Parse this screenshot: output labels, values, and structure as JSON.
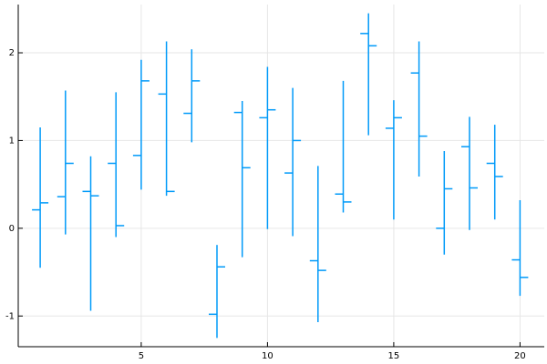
{
  "chart_data": {
    "type": "ohlc",
    "color": "#009af9",
    "grid": true,
    "x": [
      1,
      2,
      3,
      4,
      5,
      6,
      7,
      8,
      9,
      10,
      11,
      12,
      13,
      14,
      15,
      16,
      17,
      18,
      19,
      20
    ],
    "open": [
      0.21,
      0.36,
      0.42,
      0.74,
      0.83,
      1.53,
      1.31,
      -0.98,
      1.32,
      1.26,
      0.63,
      -0.37,
      0.39,
      2.22,
      1.14,
      1.77,
      0.0,
      0.93,
      0.74,
      -0.36
    ],
    "high": [
      1.15,
      1.57,
      0.82,
      1.55,
      1.92,
      2.13,
      2.04,
      -0.19,
      1.45,
      1.84,
      1.6,
      0.71,
      1.68,
      2.45,
      1.46,
      2.13,
      0.88,
      1.27,
      1.18,
      0.32
    ],
    "low": [
      -0.45,
      -0.07,
      -0.94,
      -0.1,
      0.44,
      0.37,
      0.98,
      -1.25,
      -0.33,
      -0.01,
      -0.09,
      -1.07,
      0.18,
      1.06,
      0.1,
      0.59,
      -0.3,
      -0.02,
      0.1,
      -0.77
    ],
    "close": [
      0.29,
      0.74,
      0.37,
      0.03,
      1.68,
      0.42,
      1.68,
      -0.44,
      0.69,
      1.35,
      1.0,
      -0.48,
      0.3,
      2.08,
      1.26,
      1.05,
      0.45,
      0.46,
      0.59,
      -0.56
    ],
    "xlim": [
      0.13,
      20.96
    ],
    "ylim": [
      -1.35,
      2.55
    ],
    "xticks": [
      5,
      10,
      15,
      20
    ],
    "yticks": [
      -1,
      0,
      1,
      2
    ]
  }
}
